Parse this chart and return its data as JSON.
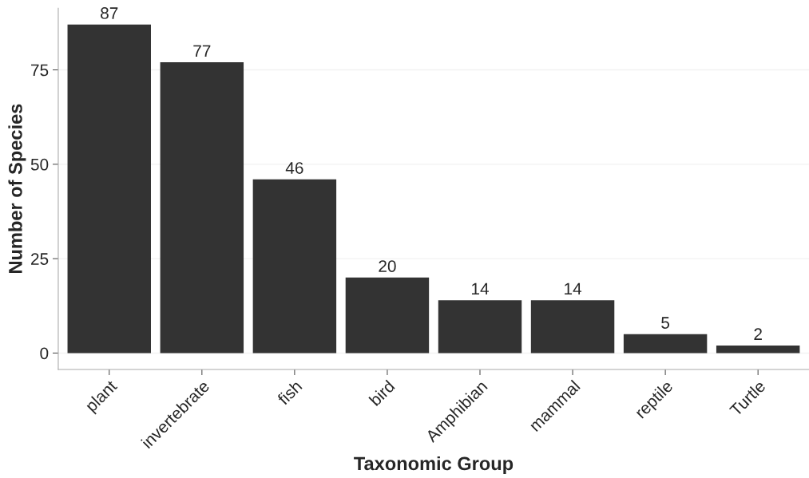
{
  "chart_data": {
    "type": "bar",
    "xlabel": "Taxonomic Group",
    "ylabel": "Number of Species",
    "categories": [
      "plant",
      "invertebrate",
      "fish",
      "bird",
      "Amphibian",
      "mammal",
      "reptile",
      "Turtle"
    ],
    "values": [
      87,
      77,
      46,
      20,
      14,
      14,
      5,
      2
    ],
    "color": "#333333",
    "data_labels": true,
    "ylim": [
      -4.35,
      91.35
    ],
    "yticks": [
      0,
      25,
      50,
      75
    ],
    "grid": "y"
  }
}
